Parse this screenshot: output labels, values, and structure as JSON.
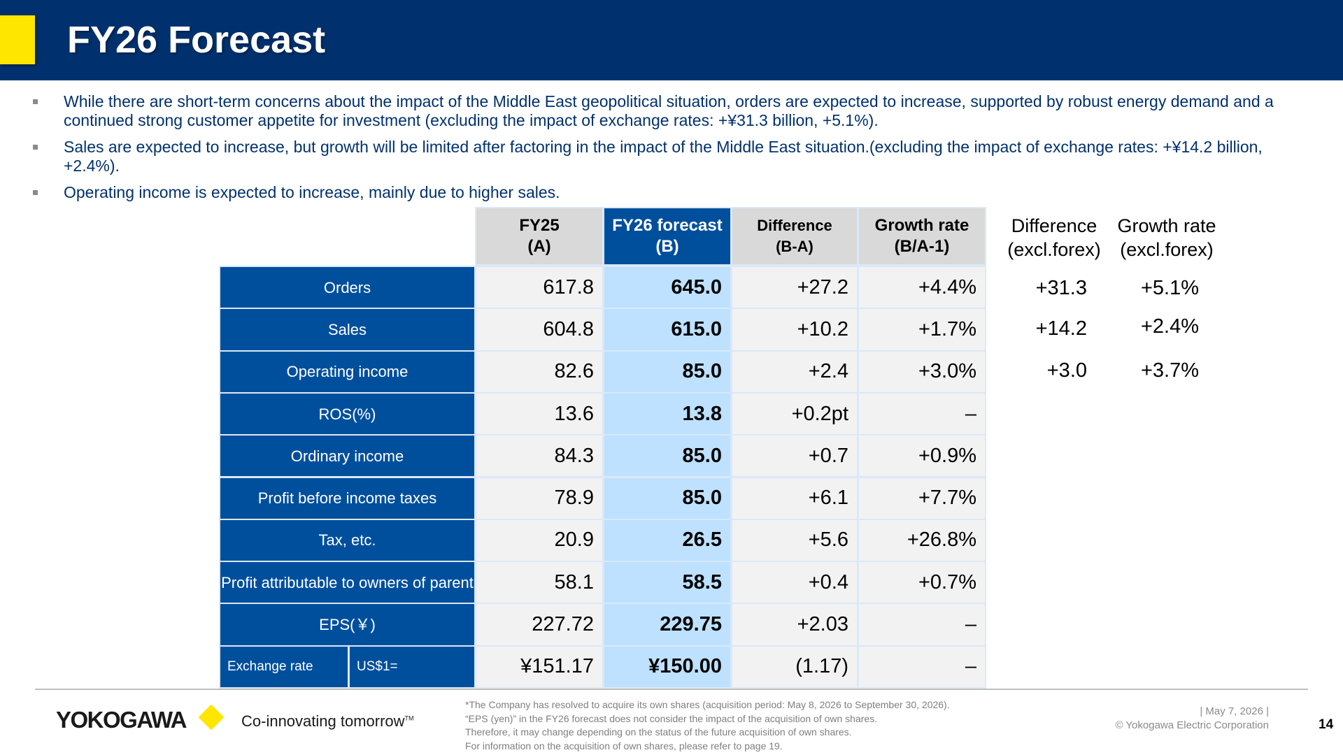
{
  "title": "FY26 Forecast",
  "colors": {
    "header_bg": "#00316e",
    "accent": "#ffe600",
    "row_label_bg": "#004f9d",
    "forecast_col_bg": "#bde1ff"
  },
  "bullets": [
    "While there are short-term concerns about the impact of the Middle East geopolitical situation, orders are expected to increase, supported by robust energy demand and a continued strong customer appetite for investment (excluding the impact of exchange rates: +¥31.3 billion, +5.1%).",
    "Sales are expected to increase, but growth will be limited after factoring in the impact of the Middle East situation.(excluding the impact of exchange rates: +¥14.2 billion, +2.4%).",
    "Operating income is expected to increase, mainly due to higher sales."
  ],
  "table": {
    "headers": {
      "fy25": [
        "FY25",
        "(A)"
      ],
      "fy26": [
        "FY26 forecast",
        "(B)"
      ],
      "diff": [
        "Difference",
        "(B-A)"
      ],
      "growth": [
        "Growth rate",
        "(B/A-1)"
      ]
    },
    "rows": [
      {
        "label": "Orders",
        "fy25": "617.8",
        "fy26": "645.0",
        "diff": "+27.2",
        "growth": "+4.4%"
      },
      {
        "label": "Sales",
        "fy25": "604.8",
        "fy26": "615.0",
        "diff": "+10.2",
        "growth": "+1.7%"
      },
      {
        "label": "Operating income",
        "fy25": "82.6",
        "fy26": "85.0",
        "diff": "+2.4",
        "growth": "+3.0%"
      },
      {
        "label": "ROS(%)",
        "fy25": "13.6",
        "fy26": "13.8",
        "diff": "+0.2pt",
        "growth": "–"
      },
      {
        "label": "Ordinary income",
        "fy25": "84.3",
        "fy26": "85.0",
        "diff": "+0.7",
        "growth": "+0.9%"
      },
      {
        "label": "Profit before income taxes",
        "fy25": "78.9",
        "fy26": "85.0",
        "diff": "+6.1",
        "growth": "+7.7%"
      },
      {
        "label": "Tax, etc.",
        "fy25": "20.9",
        "fy26": "26.5",
        "diff": "+5.6",
        "growth": "+26.8%"
      },
      {
        "label": "Profit attributable to owners of parent",
        "fy25": "58.1",
        "fy26": "58.5",
        "diff": "+0.4",
        "growth": "+0.7%"
      },
      {
        "label": "EPS(￥)",
        "fy25": "227.72",
        "fy26": "229.75",
        "diff": "+2.03",
        "growth": "–"
      }
    ],
    "exchange": {
      "label": "Exchange rate",
      "sub": "US$1=",
      "fy25": "¥151.17",
      "fy26": "¥150.00",
      "diff": "(1.17)",
      "growth": "–"
    }
  },
  "side": {
    "headers": {
      "diff": [
        "Difference",
        "(excl.forex)"
      ],
      "growth": [
        "Growth rate",
        "(excl.forex)"
      ]
    },
    "rows": [
      {
        "diff": "+31.3",
        "growth": "+5.1%"
      },
      {
        "diff": "+14.2",
        "growth": "+2.4%"
      },
      {
        "diff": "+3.0",
        "growth": "+3.7%"
      }
    ]
  },
  "footer": {
    "logo": "YOKOGAWA",
    "tagline": "Co-innovating tomorrow",
    "tagline_tm": "TM",
    "notes": [
      "*The Company has resolved to acquire its own shares (acquisition period: May 8, 2026 to September 30, 2026).",
      "“EPS (yen)” in the FY26 forecast does not consider the impact of the acquisition of own shares.",
      "Therefore, it may change depending on the status of the future acquisition of own shares.",
      "For information on the acquisition of own shares, please refer to page 19."
    ],
    "date": "| May 7, 2026 |",
    "copyright": "© Yokogawa Electric Corporation",
    "page": "14"
  }
}
